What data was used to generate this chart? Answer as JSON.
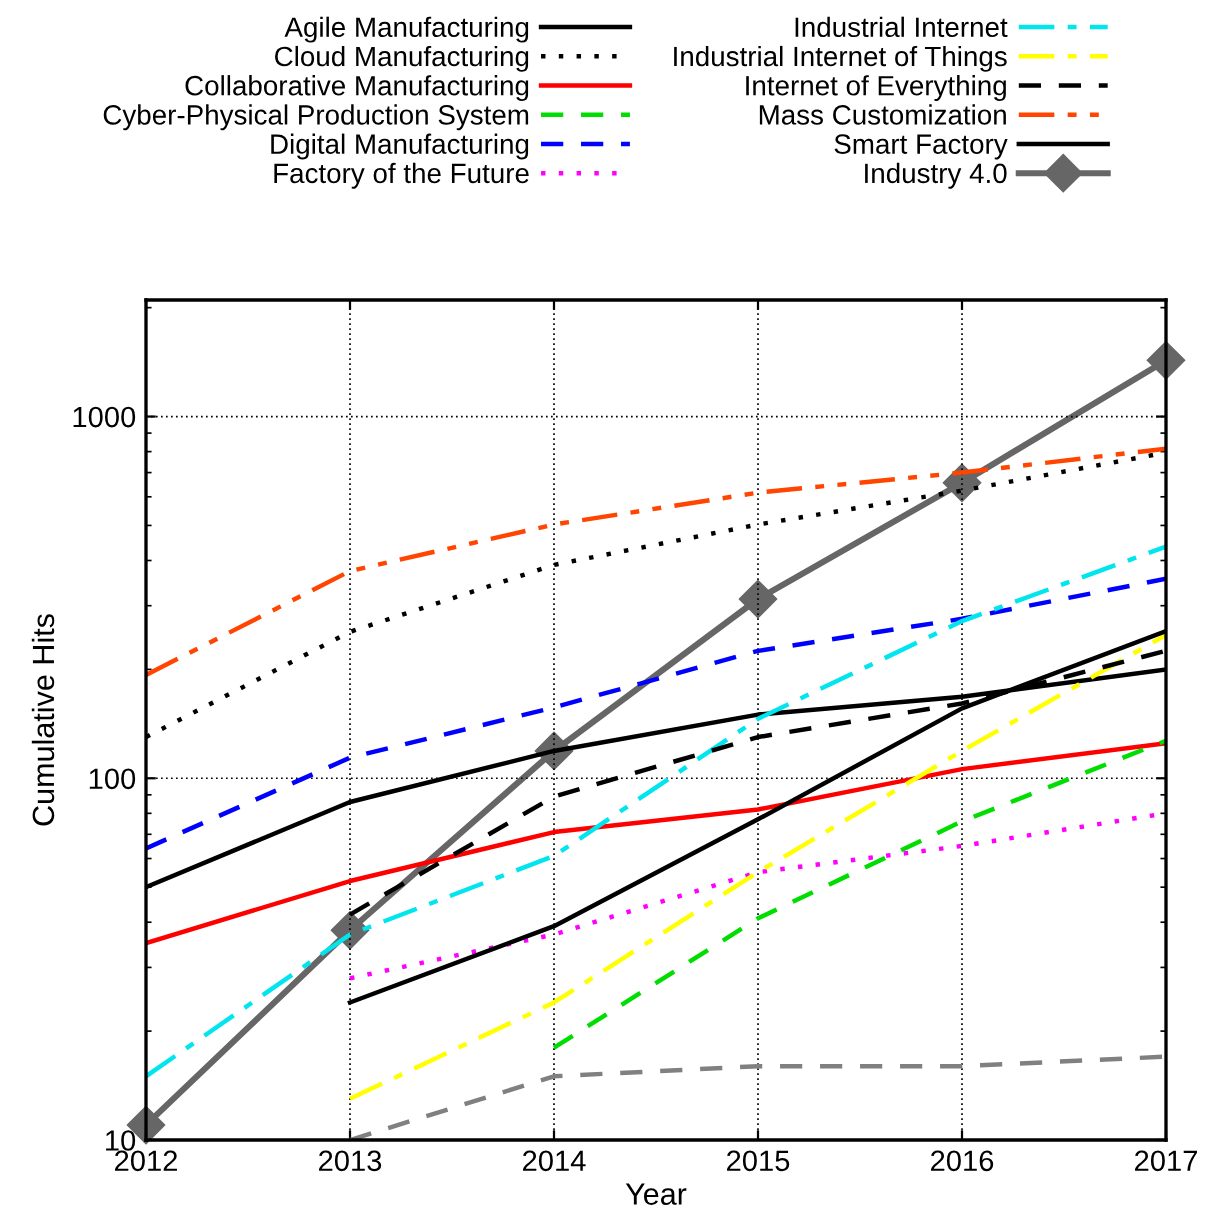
{
  "chart_data": {
    "type": "line",
    "xlabel": "Year",
    "ylabel": "Cumulative Hits",
    "x": [
      2012,
      2013,
      2014,
      2015,
      2016,
      2017
    ],
    "xlim": [
      2012,
      2017
    ],
    "xticks": [
      2012,
      2013,
      2014,
      2015,
      2016,
      2017
    ],
    "ylim": [
      10,
      2100
    ],
    "yticks": [
      10,
      100,
      1000
    ],
    "log": "y",
    "grid": true,
    "legend": "top",
    "marker": "none",
    "series": [
      {
        "name": "Agile Manufacturing",
        "color": "#000000",
        "line_style": "solid",
        "values": [
          50,
          86,
          119,
          150,
          168,
          200
        ]
      },
      {
        "name": "Cloud Manufacturing",
        "color": "#000000",
        "line_style": "dotted",
        "values": [
          130,
          254,
          389,
          503,
          624,
          795
        ]
      },
      {
        "name": "Collaborative Manufacturing",
        "color": "#ff0000",
        "line_style": "solid",
        "values": [
          35,
          52,
          71,
          82,
          106,
          125
        ]
      },
      {
        "name": "Cyber-Physical Production System",
        "color": "#00dd00",
        "line_style": "dashed",
        "values": [
          null,
          null,
          18,
          41,
          76,
          127
        ]
      },
      {
        "name": "Digital Manufacturing",
        "color": "#0000ff",
        "line_style": "dashed",
        "values": [
          64,
          114,
          157,
          225,
          276,
          356
        ]
      },
      {
        "name": "Factory of the Future",
        "color": "#ff00ff",
        "line_style": "dotted",
        "values": [
          null,
          28,
          37,
          55,
          65,
          80
        ]
      },
      {
        "name": "Industrial Internet",
        "color": "#00e5ee",
        "line_style": "dashdot",
        "values": [
          15,
          37,
          61,
          146,
          272,
          437
        ]
      },
      {
        "name": "Industrial Internet of Things",
        "color": "#ffff00",
        "line_style": "dashdot",
        "values": [
          null,
          13,
          24,
          55,
          119,
          249
        ]
      },
      {
        "name": "Internet of Everything",
        "color": "#000000",
        "line_style": "dashed",
        "values": [
          null,
          42,
          89,
          130,
          161,
          225
        ]
      },
      {
        "name": "Mass Customization",
        "color": "#ff4500",
        "line_style": "dashdotdot",
        "values": [
          193,
          374,
          503,
          616,
          700,
          815
        ]
      },
      {
        "color": "#808080",
        "line_style": "dashed",
        "values": [
          null,
          10,
          15,
          16,
          16,
          17
        ]
      },
      {
        "name": "Smart Factory",
        "color": "#000000",
        "line_style": "solid",
        "values": [
          null,
          24,
          39,
          77,
          156,
          255
        ]
      },
      {
        "name": "Industry 4.0",
        "color": "#666666",
        "line_style": "solid",
        "marker": "diamond",
        "values": [
          11,
          38,
          119,
          313,
          656,
          1430
        ]
      }
    ]
  }
}
